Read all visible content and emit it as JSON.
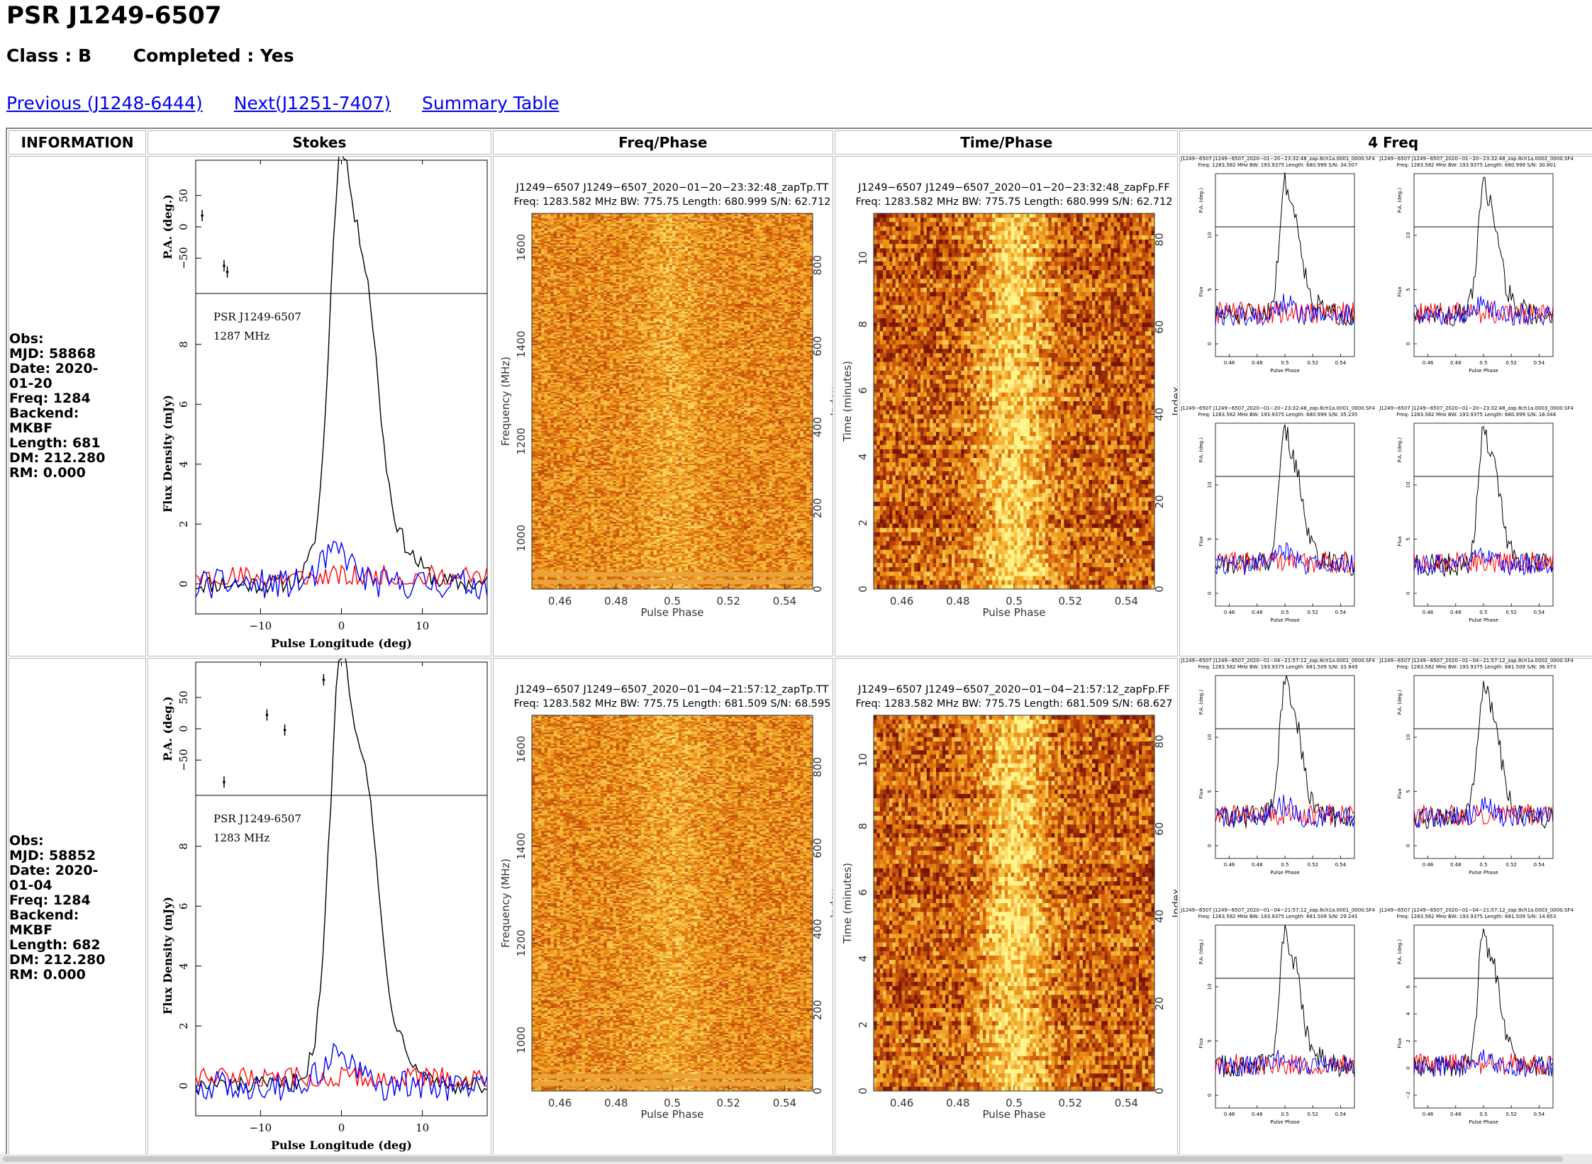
{
  "pulsar": {
    "title": "PSR J1249-6507",
    "class_label": "Class : B",
    "completed_label": "Completed : Yes"
  },
  "nav": {
    "previous": "Previous (J1248-6444)",
    "next": "Next(J1251-7407)",
    "summary": "Summary Table"
  },
  "table": {
    "headers": [
      "INFORMATION",
      "Stokes",
      "Freq/Phase",
      "Time/Phase",
      "4 Freq"
    ]
  },
  "observations": [
    {
      "info": [
        "Obs:",
        "MJD: 58868",
        "Date: 2020-",
        "01-20",
        "Freq: 1284",
        "Backend:",
        "MKBF",
        "Length: 681",
        "DM: 212.280",
        "RM: 0.000"
      ],
      "stokes": {
        "name_label": "PSR J1249-6507",
        "freq_label": "1287 MHz",
        "pa_ylabel": "P.A. (deg.)",
        "flux_ylabel": "Flux Density (mJy)",
        "xlabel": "Pulse Longitude (deg)",
        "pa_ticks": [
          "50",
          "0",
          "−50"
        ],
        "flux_ticks": [
          "8",
          "6",
          "4",
          "2",
          "0"
        ],
        "x_ticks": [
          "−10",
          "0",
          "10"
        ],
        "flux_ylim": [
          -1,
          9.7
        ],
        "x_range": [
          -18,
          18
        ],
        "pa_points": [
          [
            -17.2,
            18
          ],
          [
            -14.5,
            -62
          ],
          [
            -14.1,
            -72
          ]
        ]
      },
      "freq_phase": {
        "title_line1": "J1249−6507 J1249−6507_2020−01−20−23:32:48_zapTp.TT",
        "title_line2": "Freq: 1283.582 MHz BW: 775.75 Length: 680.999 S/N: 62.712",
        "ylabel": "Frequency (MHz)",
        "y2label": "Index",
        "xlabel": "Pulse Phase",
        "y_ticks": [
          "1600",
          "1400",
          "1200",
          "1000"
        ],
        "y2_ticks": [
          "800",
          "600",
          "400",
          "200",
          "0"
        ],
        "x_ticks": [
          "0.46",
          "0.48",
          "0.5",
          "0.52",
          "0.54"
        ]
      },
      "time_phase": {
        "title_line1": "J1249−6507 J1249−6507_2020−01−20−23:32:48_zapFp.FF",
        "title_line2": "Freq: 1283.582 MHz BW: 775.75 Length: 680.999 S/N: 62.712",
        "ylabel": "Time (minutes)",
        "y2label": "Index",
        "xlabel": "Pulse Phase",
        "y_ticks": [
          "10",
          "8",
          "6",
          "4",
          "2",
          "0"
        ],
        "y2_ticks": [
          "80",
          "60",
          "40",
          "20",
          "0"
        ],
        "x_ticks": [
          "0.46",
          "0.48",
          "0.5",
          "0.52",
          "0.54"
        ]
      },
      "four_freq": [
        {
          "title": "J1249−6507 J1249−6507_2020−01−20−23:32:48_zap.8ch1a.0001_0000.SF4",
          "subtitle": "Freq: 1283.582 MHz BW: 193.9375 Length: 680.999 S/N: 34.507",
          "pa_ylabel": "P.A. (deg.)",
          "flux_ylabel": "Flux",
          "xlabel": "Pulse Phase",
          "flux_ticks": [
            "10",
            "5",
            "0"
          ]
        },
        {
          "title": "J1249−6507 J1249−6507_2020−01−20−23:32:48_zap.8ch1a.0002_0000.SF4",
          "subtitle": "Freq: 1283.582 MHz BW: 193.9375 Length: 680.999 S/N: 30.801",
          "pa_ylabel": "P.A. (deg.)",
          "flux_ylabel": "Flux",
          "xlabel": "Pulse Phase",
          "flux_ticks": [
            "10",
            "5",
            "0"
          ]
        },
        {
          "title": "J1249−6507 J1249−6507_2020−01−20−23:32:48_zap.8ch1a.0001_0000.SF4",
          "subtitle": "Freq: 1283.582 MHz BW: 193.9375 Length: 680.999 S/N: 35.235",
          "pa_ylabel": "P.A. (deg.)",
          "flux_ylabel": "Flux",
          "xlabel": "Pulse Phase",
          "flux_ticks": [
            "10",
            "5",
            "0"
          ]
        },
        {
          "title": "J1249−6507 J1249−6507_2020−01−20−23:32:48_zap.8ch1a.0003_0000.SF4",
          "subtitle": "Freq: 1283.582 MHz BW: 193.9375 Length: 680.999 S/N: 18.044",
          "pa_ylabel": "P.A. (deg.)",
          "flux_ylabel": "Flux",
          "xlabel": "Pulse Phase",
          "flux_ticks": [
            "10",
            "5",
            "0"
          ]
        }
      ]
    },
    {
      "info": [
        "Obs:",
        "MJD: 58852",
        "Date: 2020-",
        "01-04",
        "Freq: 1284",
        "Backend:",
        "MKBF",
        "Length: 682",
        "DM: 212.280",
        "RM: 0.000"
      ],
      "stokes": {
        "name_label": "PSR J1249-6507",
        "freq_label": "1283 MHz",
        "pa_ylabel": "P.A. (deg.)",
        "flux_ylabel": "Flux Density (mJy)",
        "xlabel": "Pulse Longitude (deg)",
        "pa_ticks": [
          "50",
          "0",
          "−50"
        ],
        "flux_ticks": [
          "8",
          "6",
          "4",
          "2",
          "0"
        ],
        "x_ticks": [
          "−10",
          "0",
          "10"
        ],
        "flux_ylim": [
          -1,
          9.7
        ],
        "x_range": [
          -18,
          18
        ],
        "pa_points": [
          [
            -14.5,
            -85
          ],
          [
            -9.2,
            22
          ],
          [
            -7.0,
            -2
          ],
          [
            -2.2,
            78
          ]
        ]
      },
      "freq_phase": {
        "title_line1": "J1249−6507 J1249−6507_2020−01−04−21:57:12_zapTp.TT",
        "title_line2": "Freq: 1283.582 MHz BW: 775.75 Length: 681.509 S/N: 68.595",
        "ylabel": "Frequency (MHz)",
        "y2label": "Index",
        "xlabel": "Pulse Phase",
        "y_ticks": [
          "1600",
          "1400",
          "1200",
          "1000"
        ],
        "y2_ticks": [
          "800",
          "600",
          "400",
          "200",
          "0"
        ],
        "x_ticks": [
          "0.46",
          "0.48",
          "0.5",
          "0.52",
          "0.54"
        ]
      },
      "time_phase": {
        "title_line1": "J1249−6507 J1249−6507_2020−01−04−21:57:12_zapFp.FF",
        "title_line2": "Freq: 1283.582 MHz BW: 775.75 Length: 681.509 S/N: 68.627",
        "ylabel": "Time (minutes)",
        "y2label": "Index",
        "xlabel": "Pulse Phase",
        "y_ticks": [
          "10",
          "8",
          "6",
          "4",
          "2",
          "0"
        ],
        "y2_ticks": [
          "80",
          "60",
          "40",
          "20",
          "0"
        ],
        "x_ticks": [
          "0.46",
          "0.48",
          "0.5",
          "0.52",
          "0.54"
        ]
      },
      "four_freq": [
        {
          "title": "J1249−6507 J1249−6507_2020−01−04−21:57:12_zap.8ch1a.0001_0000.SF4",
          "subtitle": "Freq: 1283.582 MHz BW: 193.9375 Length: 681.509 S/N: 33.849",
          "pa_ylabel": "P.A. (deg.)",
          "flux_ylabel": "Flux",
          "xlabel": "Pulse Phase",
          "flux_ticks": [
            "10",
            "5",
            "0"
          ]
        },
        {
          "title": "J1249−6507 J1249−6507_2020−01−04−21:57:12_zap.8ch1a.0002_0000.SF4",
          "subtitle": "Freq: 1283.582 MHz BW: 193.9375 Length: 681.509 S/N: 36.973",
          "pa_ylabel": "P.A. (deg.)",
          "flux_ylabel": "Flux",
          "xlabel": "Pulse Phase",
          "flux_ticks": [
            "10",
            "5",
            "0"
          ]
        },
        {
          "title": "J1249−6507 J1249−6507_2020−01−04−21:57:12_zap.8ch1a.0001_0000.SF4",
          "subtitle": "Freq: 1283.582 MHz BW: 193.9375 Length: 681.509 S/N: 29.245",
          "pa_ylabel": "P.A. (deg.)",
          "flux_ylabel": "Flux",
          "xlabel": "Pulse Phase",
          "flux_ticks": [
            "10",
            "5",
            "0"
          ]
        },
        {
          "title": "J1249−6507 J1249−6507_2020−01−04−21:57:12_zap.8ch1a.0003_0000.SF4",
          "subtitle": "Freq: 1283.582 MHz BW: 193.9375 Length: 681.509 S/N: 14.853",
          "pa_ylabel": "P.A. (deg.)",
          "flux_ylabel": "Flux",
          "xlabel": "Pulse Phase",
          "flux_ticks": [
            "6",
            "4",
            "2",
            "0",
            "−2"
          ]
        }
      ]
    }
  ],
  "colors": {
    "link": "#0000ee",
    "stokes_i": "#000000",
    "stokes_l": "#ff0000",
    "stokes_v": "#0000ff",
    "heat_low": "#cf5a0a",
    "heat_high": "#fff27a"
  }
}
